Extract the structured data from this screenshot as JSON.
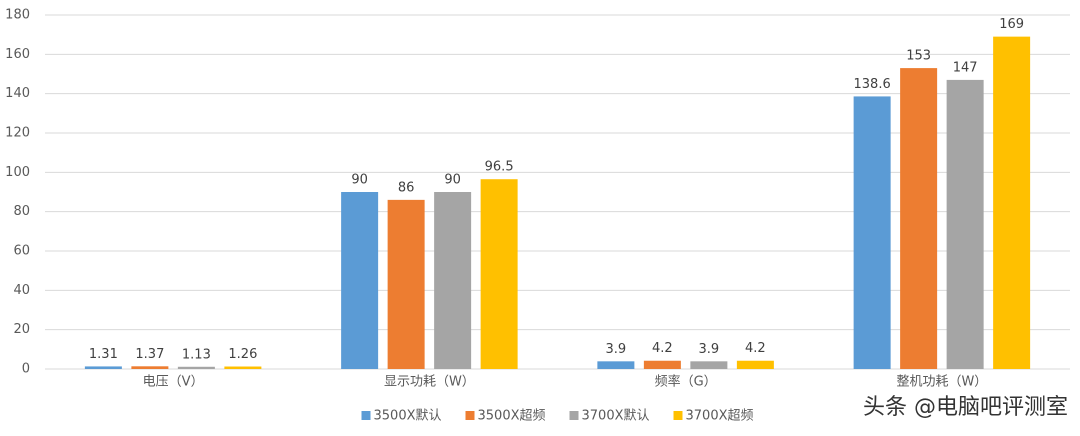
{
  "chart_data": {
    "type": "bar",
    "categories": [
      "电压（V）",
      "显示功耗（W）",
      "频率（G）",
      "整机功耗（W）"
    ],
    "series": [
      {
        "name": "3500X默认",
        "color": "#5b9bd5",
        "values": [
          1.31,
          90,
          3.9,
          138.6
        ]
      },
      {
        "name": "3500X超频",
        "color": "#ed7d31",
        "values": [
          1.37,
          86,
          4.2,
          153
        ]
      },
      {
        "name": "3700X默认",
        "color": "#a5a5a5",
        "values": [
          1.13,
          90,
          3.9,
          147
        ]
      },
      {
        "name": "3700X超频",
        "color": "#ffc000",
        "values": [
          1.26,
          96.5,
          4.2,
          169
        ]
      }
    ],
    "ylim": [
      0,
      180
    ],
    "yticks": [
      0,
      20,
      40,
      60,
      80,
      100,
      120,
      140,
      160,
      180
    ],
    "grid": true,
    "legend": "bottom",
    "watermark": "头条 @电脑吧评测室"
  }
}
